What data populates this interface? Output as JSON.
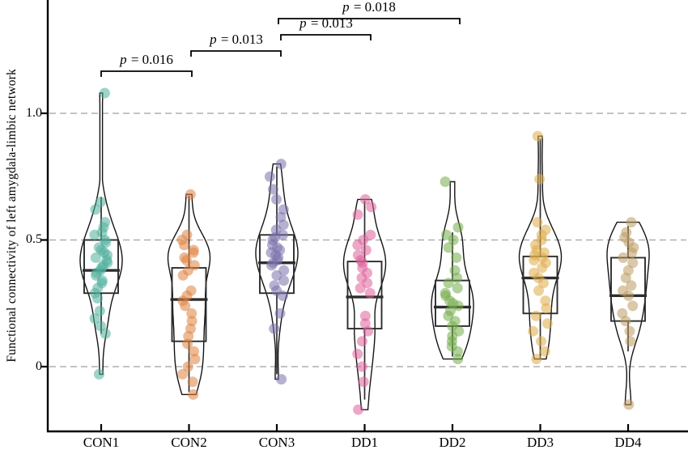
{
  "chart_data": {
    "type": "violin",
    "title": "",
    "xlabel": "",
    "ylabel": "Functional connectivity of left amygdala-limbic network",
    "categories": [
      "CON1",
      "CON2",
      "CON3",
      "DD1",
      "DD2",
      "DD3",
      "DD4"
    ],
    "yticks": [
      {
        "label": "1.0",
        "value": 1.0
      },
      {
        "label": "0.5",
        "value": 0.5
      },
      {
        "label": "0",
        "value": 0
      }
    ],
    "ylim": [
      -0.26,
      1.44
    ],
    "grid": "horizontal-dashed-at-yticks",
    "gridline_color": "#b3adb0",
    "legend": "none",
    "groups": [
      {
        "name": "CON1",
        "color": "#4fae9b",
        "box": {
          "whislo": 0.13,
          "q1": 0.29,
          "med": 0.38,
          "q3": 0.5,
          "whishi": 0.67
        },
        "points": [
          1.08,
          0.65,
          0.62,
          0.57,
          0.55,
          0.53,
          0.52,
          0.5,
          0.49,
          0.47,
          0.46,
          0.45,
          0.44,
          0.43,
          0.42,
          0.41,
          0.4,
          0.39,
          0.38,
          0.37,
          0.36,
          0.34,
          0.33,
          0.31,
          0.29,
          0.27,
          0.22,
          0.19,
          0.16,
          0.13,
          -0.03
        ]
      },
      {
        "name": "CON2",
        "color": "#de823f",
        "box": {
          "whislo": -0.1,
          "q1": 0.1,
          "med": 0.265,
          "q3": 0.39,
          "whishi": 0.675
        },
        "points": [
          0.68,
          0.52,
          0.5,
          0.48,
          0.46,
          0.45,
          0.43,
          0.42,
          0.4,
          0.38,
          0.36,
          0.3,
          0.28,
          0.26,
          0.24,
          0.21,
          0.18,
          0.15,
          0.12,
          0.09,
          0.06,
          0.03,
          0.0,
          -0.03,
          -0.06,
          -0.11
        ]
      },
      {
        "name": "CON3",
        "color": "#7b71ac",
        "box": {
          "whislo": -0.03,
          "q1": 0.29,
          "med": 0.41,
          "q3": 0.52,
          "whishi": 0.79
        },
        "points": [
          0.8,
          0.75,
          0.7,
          0.66,
          0.62,
          0.59,
          0.56,
          0.54,
          0.52,
          0.51,
          0.5,
          0.48,
          0.47,
          0.46,
          0.45,
          0.44,
          0.43,
          0.42,
          0.41,
          0.4,
          0.38,
          0.36,
          0.34,
          0.32,
          0.3,
          0.28,
          0.21,
          0.15,
          -0.05
        ]
      },
      {
        "name": "DD1",
        "color": "#df619b",
        "box": {
          "whislo": -0.13,
          "q1": 0.15,
          "med": 0.275,
          "q3": 0.415,
          "whishi": 0.655
        },
        "points": [
          0.66,
          0.63,
          0.6,
          0.52,
          0.5,
          0.48,
          0.46,
          0.44,
          0.42,
          0.41,
          0.39,
          0.37,
          0.35,
          0.33,
          0.31,
          0.29,
          0.2,
          0.17,
          0.14,
          0.1,
          0.05,
          0.0,
          -0.06,
          -0.17
        ]
      },
      {
        "name": "DD2",
        "color": "#73ac48",
        "box": {
          "whislo": 0.04,
          "q1": 0.16,
          "med": 0.235,
          "q3": 0.34,
          "whishi": 0.53
        },
        "points": [
          0.73,
          0.55,
          0.52,
          0.5,
          0.47,
          0.43,
          0.38,
          0.35,
          0.33,
          0.31,
          0.29,
          0.28,
          0.26,
          0.25,
          0.24,
          0.22,
          0.2,
          0.18,
          0.16,
          0.14,
          0.12,
          0.1,
          0.08,
          0.06,
          0.03
        ]
      },
      {
        "name": "DD3",
        "color": "#deac48",
        "box": {
          "whislo": 0.03,
          "q1": 0.21,
          "med": 0.35,
          "q3": 0.435,
          "whishi": 0.9
        },
        "points": [
          0.91,
          0.74,
          0.57,
          0.54,
          0.52,
          0.5,
          0.48,
          0.46,
          0.45,
          0.44,
          0.43,
          0.42,
          0.41,
          0.39,
          0.37,
          0.35,
          0.33,
          0.3,
          0.26,
          0.23,
          0.2,
          0.17,
          0.14,
          0.1,
          0.06,
          0.03
        ]
      },
      {
        "name": "DD4",
        "color": "#bc9b61",
        "box": {
          "whislo": 0.06,
          "q1": 0.18,
          "med": 0.28,
          "q3": 0.43,
          "whishi": 0.555
        },
        "points": [
          0.57,
          0.53,
          0.51,
          0.49,
          0.47,
          0.45,
          0.43,
          0.41,
          0.38,
          0.35,
          0.32,
          0.3,
          0.28,
          0.24,
          0.21,
          0.18,
          0.14,
          0.1,
          -0.15
        ]
      }
    ],
    "comparisons": [
      {
        "from": "CON1",
        "to": "CON2",
        "label": "p = 0.016"
      },
      {
        "from": "CON2",
        "to": "CON3",
        "label": "p = 0.013"
      },
      {
        "from": "CON3",
        "to": "DD1",
        "label": "p = 0.013"
      },
      {
        "from": "CON3",
        "to": "DD2",
        "label": "p = 0.018"
      }
    ]
  }
}
